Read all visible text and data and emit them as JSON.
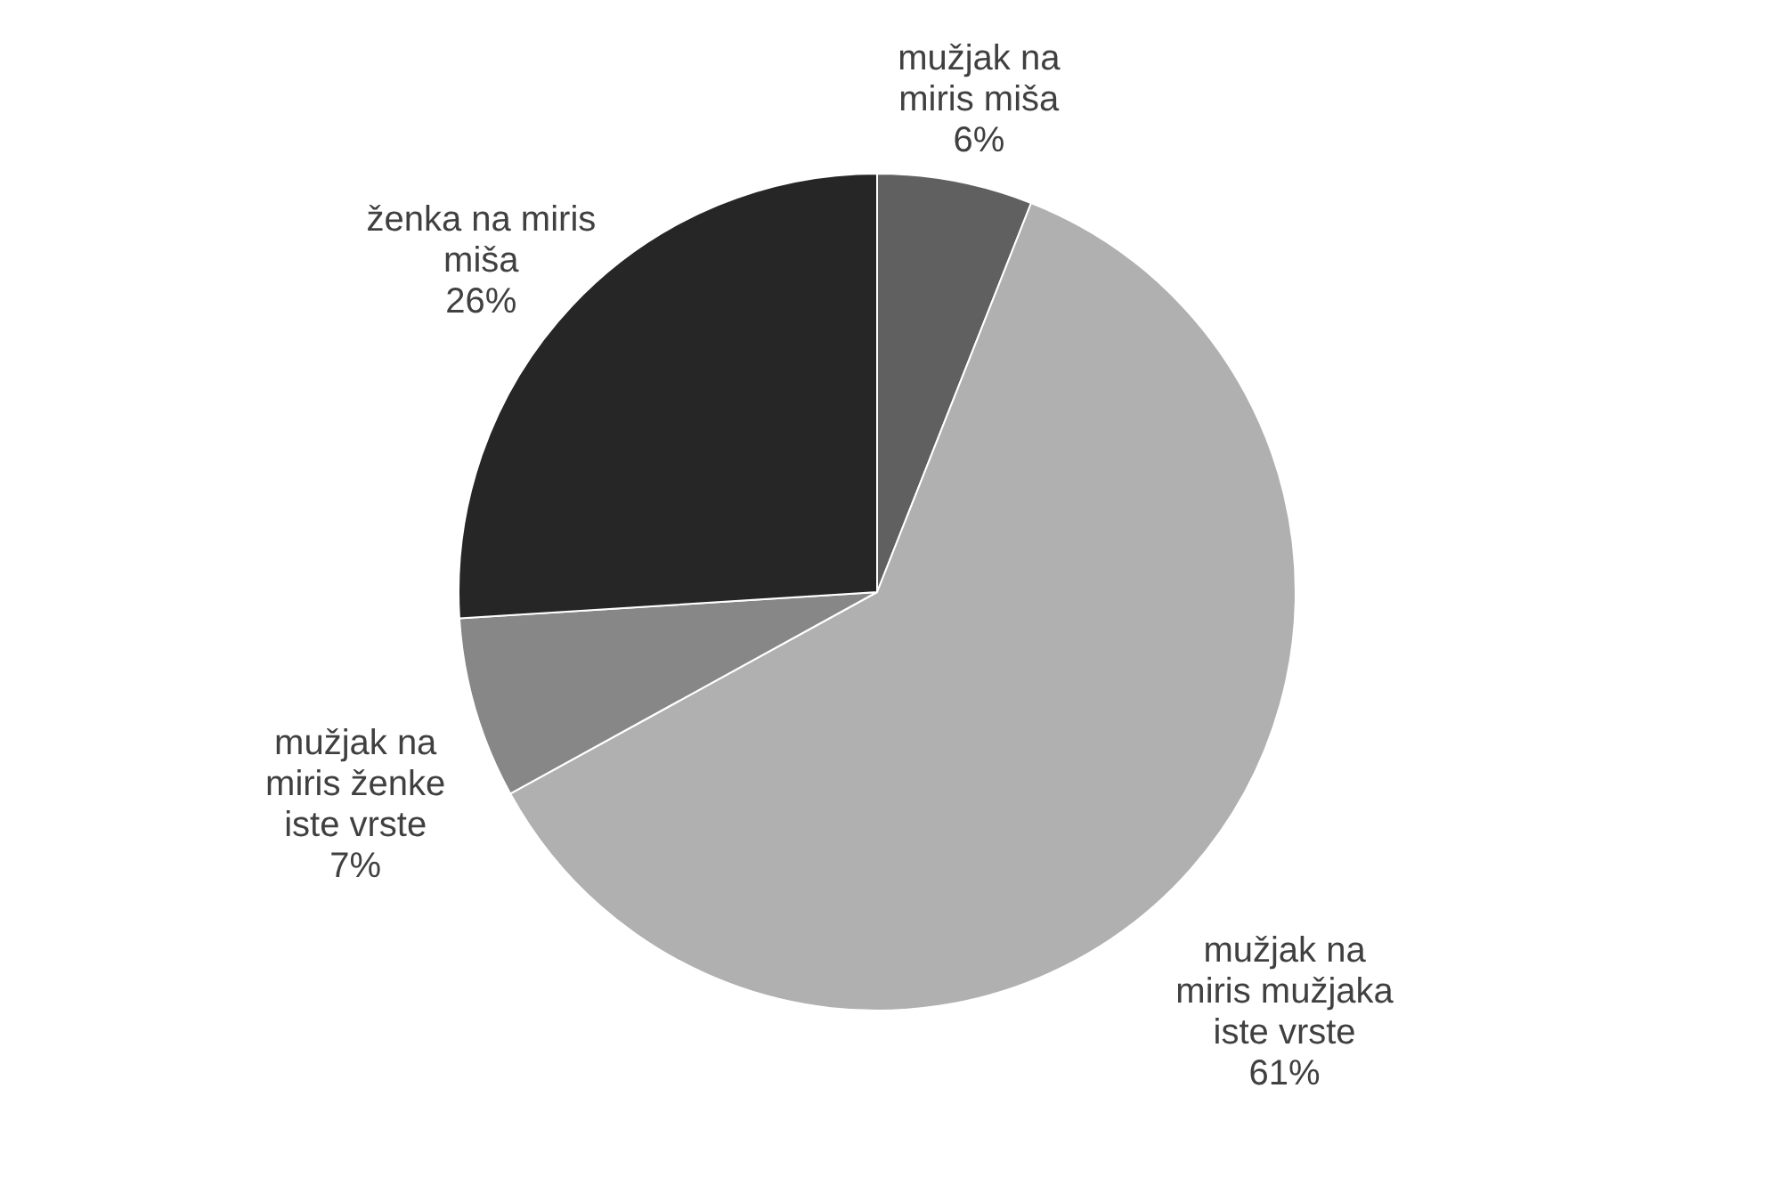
{
  "chart_data": {
    "type": "pie",
    "categories": [
      "mužjak na miris miša",
      "mužjak na miris mužjaka iste vrste",
      "mužjak na miris ženke iste vrste",
      "ženka na miris miša"
    ],
    "values": [
      6,
      61,
      7,
      26
    ],
    "colors": [
      "#606060",
      "#b0b0b0",
      "#878787",
      "#262626"
    ],
    "value_labels": [
      "6%",
      "61%",
      "7%",
      "26%"
    ],
    "legend": false
  }
}
